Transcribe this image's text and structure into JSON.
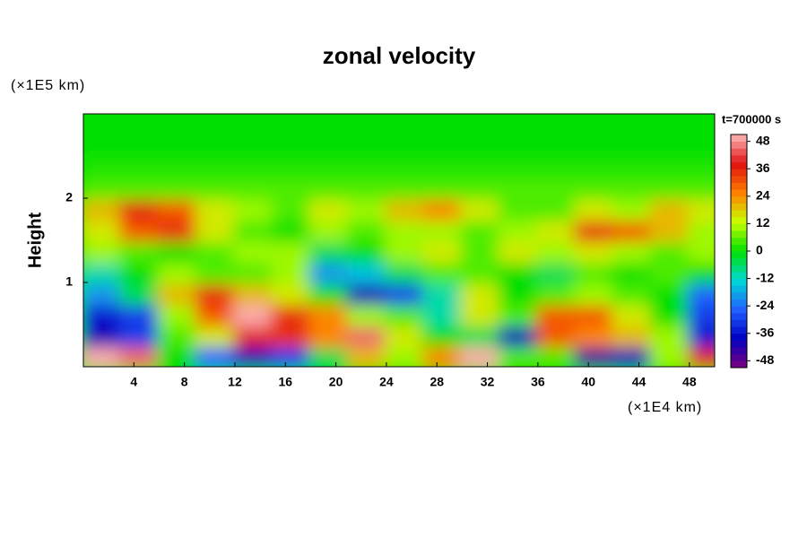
{
  "chart_data": {
    "type": "heatmap",
    "title": "zonal velocity",
    "y_label": "Height",
    "y_unit": "(×1E5 km)",
    "x_unit": "(×1E4 km)",
    "colorbar_title": "t=700000 s",
    "xlim": [
      0,
      50
    ],
    "ylim": [
      0,
      3
    ],
    "xticks": [
      4,
      8,
      12,
      16,
      20,
      24,
      28,
      32,
      36,
      40,
      44,
      48
    ],
    "yticks": [
      1,
      2
    ],
    "clim": [
      -51,
      51
    ],
    "cticks": [
      -48,
      -36,
      -24,
      -12,
      0,
      12,
      24,
      36,
      48
    ],
    "colormap": [
      "#800080",
      "#0000c0",
      "#2060ff",
      "#00d8d8",
      "#00e000",
      "#c8ff00",
      "#ff8000",
      "#e01010",
      "#ffb8b8"
    ],
    "x": [
      1.5,
      4.5,
      7.5,
      10.5,
      13.5,
      16.5,
      19.5,
      22.5,
      25.5,
      28.5,
      31.5,
      34.5,
      37.5,
      40.5,
      43.5,
      46.5,
      49.5
    ],
    "y": [
      0.125,
      0.375,
      0.625,
      0.875,
      1.125,
      1.375,
      1.625,
      1.875,
      2.125,
      2.375,
      2.625,
      2.875
    ],
    "z": [
      [
        50,
        45,
        0,
        -25,
        -40,
        -30,
        -5,
        20,
        10,
        25,
        50,
        5,
        5,
        -45,
        -40,
        10,
        40
      ],
      [
        -40,
        -30,
        5,
        15,
        40,
        35,
        25,
        45,
        15,
        0,
        -5,
        -40,
        30,
        25,
        20,
        10,
        -35
      ],
      [
        -35,
        -30,
        10,
        30,
        50,
        35,
        25,
        10,
        5,
        -10,
        15,
        5,
        30,
        30,
        15,
        0,
        -30
      ],
      [
        -20,
        -5,
        20,
        35,
        20,
        15,
        0,
        -40,
        -30,
        -10,
        15,
        0,
        5,
        10,
        5,
        0,
        -25
      ],
      [
        -10,
        0,
        10,
        5,
        5,
        10,
        -20,
        -15,
        -5,
        5,
        5,
        0,
        -5,
        5,
        0,
        5,
        0
      ],
      [
        10,
        5,
        0,
        5,
        10,
        10,
        -5,
        0,
        10,
        15,
        5,
        15,
        10,
        15,
        10,
        5,
        10
      ],
      [
        15,
        30,
        35,
        15,
        5,
        0,
        10,
        5,
        10,
        10,
        5,
        10,
        15,
        35,
        30,
        20,
        10
      ],
      [
        20,
        36,
        30,
        15,
        10,
        5,
        15,
        10,
        20,
        25,
        15,
        5,
        5,
        15,
        10,
        20,
        15
      ],
      [
        5,
        5,
        5,
        5,
        5,
        5,
        5,
        5,
        5,
        5,
        5,
        5,
        5,
        5,
        5,
        5,
        5
      ],
      [
        2,
        2,
        2,
        2,
        2,
        2,
        2,
        2,
        2,
        2,
        2,
        2,
        2,
        2,
        2,
        2,
        2
      ],
      [
        0,
        0,
        0,
        0,
        0,
        0,
        0,
        0,
        0,
        0,
        0,
        0,
        0,
        0,
        0,
        0,
        0
      ],
      [
        0,
        0,
        0,
        0,
        0,
        0,
        0,
        0,
        0,
        0,
        0,
        0,
        0,
        0,
        0,
        0,
        0
      ]
    ]
  }
}
